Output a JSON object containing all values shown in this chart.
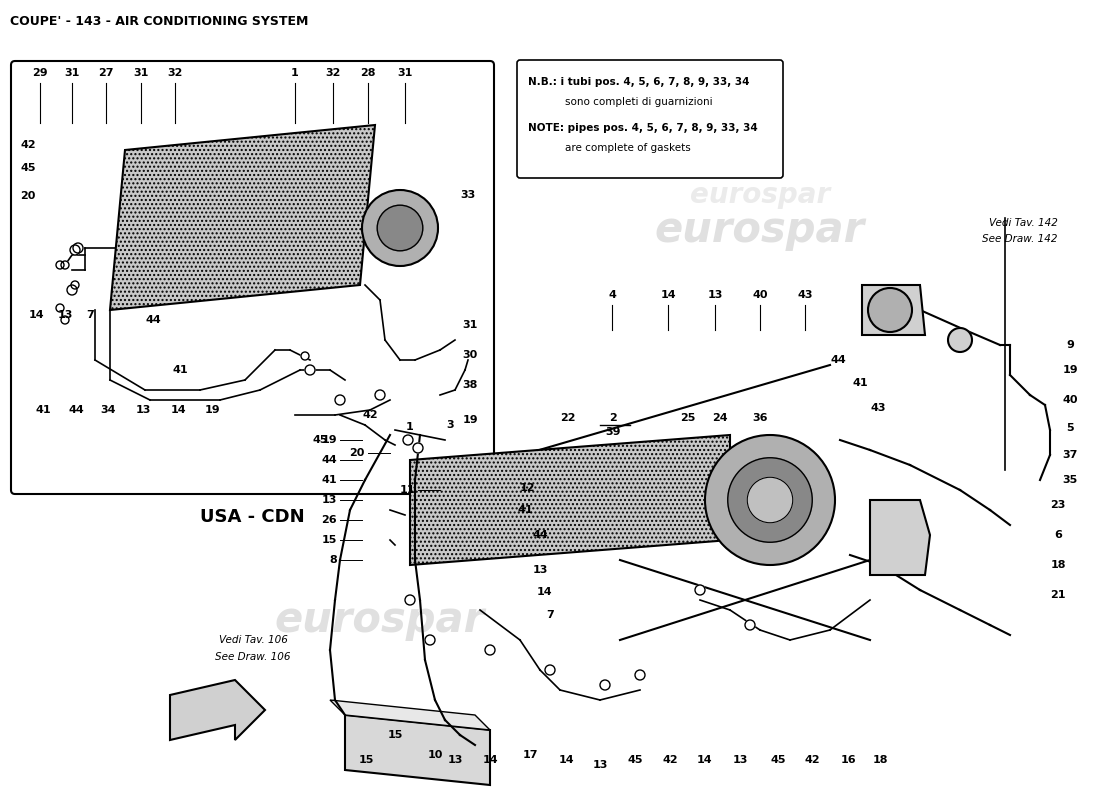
{
  "title": "COUPE' - 143 - AIR CONDITIONING SYSTEM",
  "bg_color": "#ffffff",
  "line_color": "#000000",
  "note_text": "N.B.: i tubi pos. 4, 5, 6, 7, 8, 9, 33, 34\n     sono completi di guarnizioni\n\nNOTE: pipes pos. 4, 5, 6, 7, 8, 9, 33, 34\n     are complete of gaskets",
  "note_line1": "N.B.: i tubi pos. 4, 5, 6, 7, 8, 9, 33, 34",
  "note_line2": "sono completi di guarnizioni",
  "note_line3": "NOTE: pipes pos. 4, 5, 6, 7, 8, 9, 33, 34",
  "note_line4": "are complete of gaskets",
  "vedi_142": "Vedi Tav. 142",
  "see_142": "See Draw. 142",
  "vedi_106": "Vedi Tav. 106",
  "see_106": "See Draw. 106",
  "usa_cdn": "USA - CDN",
  "hatch_color": "#c0c0c0",
  "watermark": "eurospar"
}
